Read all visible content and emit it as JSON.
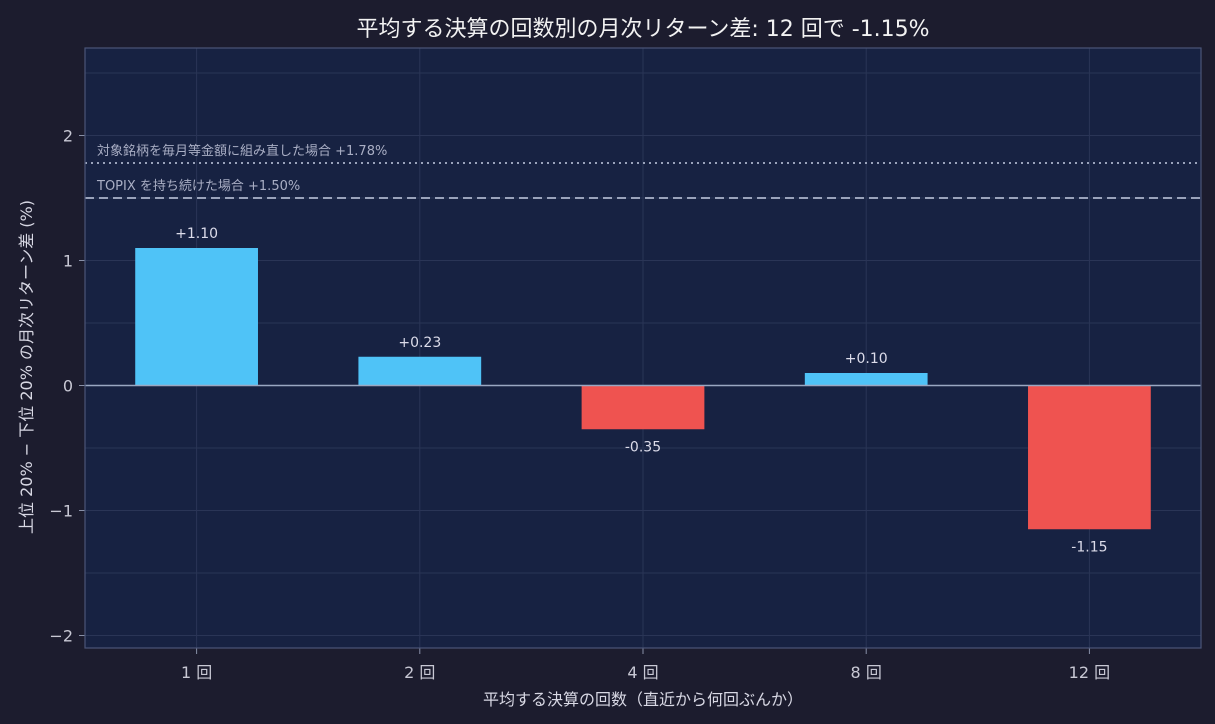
{
  "chart_data": {
    "type": "bar",
    "title": "平均する決算の回数別の月次リターン差: 12 回で -1.15%",
    "xlabel": "平均する決算の回数（直近から何回ぶんか）",
    "ylabel": "上位 20% − 下位 20% の月次リターン差 (%)",
    "categories": [
      "1 回",
      "2 回",
      "4 回",
      "8 回",
      "12 回"
    ],
    "values": [
      1.1,
      0.23,
      -0.35,
      0.1,
      -1.15
    ],
    "value_labels": [
      "+1.10",
      "+0.23",
      "-0.35",
      "+0.10",
      "-1.15"
    ],
    "ylim": [
      -2.1,
      2.7
    ],
    "yticks": [
      -2,
      -1,
      0,
      1,
      2
    ],
    "ytick_labels": [
      "−2",
      "−1",
      "0",
      "1",
      "2"
    ],
    "grid": true,
    "reference_lines": [
      {
        "label": "対象銘柄を毎月等金額に組み直した場合 +1.78%",
        "value": 1.78,
        "style": "dotted"
      },
      {
        "label": "TOPIX を持ち続けた場合 +1.50%",
        "value": 1.5,
        "style": "dashed"
      }
    ],
    "colors": {
      "positive": "#4fc3f7",
      "negative": "#ef5350",
      "plot_bg": "#172242",
      "page_bg": "#1c1c2e",
      "reference": "#9aa3bb"
    }
  }
}
